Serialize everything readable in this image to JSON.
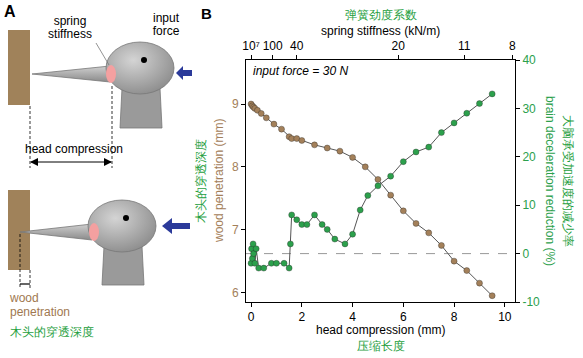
{
  "diagram": {
    "letter": "A",
    "labels": {
      "spring": "spring stiffness",
      "force": "input force",
      "compression": "head compression",
      "penetration": "wood penetration",
      "penetration_zh": "木头的穿透深度"
    }
  },
  "chart_data": {
    "panel": "B",
    "type": "line",
    "marker": "circle",
    "line_style": "solid",
    "xlabel": "head compression (mm)",
    "xlabel_zh": "压缩长度",
    "x2label": "spring stiffness (kN/m)",
    "x2label_zh": "弹簧劲度系数",
    "ylabel": "wood penetration (mm)",
    "ylabel_zh": "木头的穿透深度",
    "y2label": "brain deceleration reduction (%)",
    "y2label_zh": "大脑承受加速度的减少率",
    "annotations": [
      {
        "text": "input force = 30 N"
      }
    ],
    "xlim": [
      -0.2,
      10.4
    ],
    "xticks": [
      0,
      2,
      4,
      6,
      8,
      10
    ],
    "x2ticks": [
      {
        "value": 10000000,
        "label": "10⁷",
        "at": 0
      },
      {
        "value": 100,
        "at": 0.85
      },
      {
        "value": 40,
        "at": 1.8
      },
      {
        "value": 20,
        "at": 5.8
      },
      {
        "value": 11,
        "at": 8.4
      },
      {
        "value": 8,
        "at": 10.3
      }
    ],
    "ylim": [
      5.85,
      9.7
    ],
    "yticks": [
      6,
      7,
      8,
      9
    ],
    "y2lim": [
      -10,
      40
    ],
    "y2ticks": [
      -10,
      0,
      10,
      20,
      30,
      40
    ],
    "hlines": [
      {
        "axis": "y2",
        "value": 0,
        "line_style": "dash"
      }
    ],
    "grid": false,
    "series": [
      {
        "color": "#a3805a",
        "axis": "y",
        "x": [
          0,
          0.05,
          0.1,
          0.15,
          0.25,
          0.4,
          0.6,
          0.9,
          1.2,
          1.5,
          1.6,
          1.8,
          2.0,
          2.5,
          3.0,
          3.5,
          4.0,
          4.5,
          5.0,
          5.5,
          6.0,
          6.5,
          7.0,
          7.5,
          8.0,
          8.5,
          9.0,
          9.5
        ],
        "values": [
          9.0,
          8.97,
          8.95,
          8.93,
          8.9,
          8.85,
          8.78,
          8.68,
          8.6,
          8.48,
          8.45,
          8.45,
          8.42,
          8.35,
          8.3,
          8.25,
          8.15,
          8.0,
          7.8,
          7.55,
          7.3,
          7.1,
          6.95,
          6.75,
          6.5,
          6.35,
          6.15,
          5.95
        ]
      },
      {
        "color": "#2ca04c",
        "axis": "y2",
        "x": [
          0,
          0.02,
          0.05,
          0.08,
          0.1,
          0.15,
          0.2,
          0.3,
          0.5,
          0.8,
          1.0,
          1.3,
          1.5,
          1.55,
          1.6,
          1.8,
          2.0,
          2.2,
          2.5,
          2.8,
          3.0,
          3.3,
          3.7,
          4.0,
          4.3,
          4.6,
          5.0,
          5.5,
          6.0,
          6.5,
          7.0,
          7.5,
          8.0,
          8.5,
          9.0,
          9.5
        ],
        "values": [
          -2,
          1,
          -1,
          2,
          0,
          -2,
          1,
          -3,
          -3,
          -2,
          -2,
          -2,
          -3,
          2,
          8,
          7,
          6,
          6,
          8,
          6,
          5,
          3,
          2,
          4,
          9,
          12,
          14,
          16,
          19,
          21,
          22,
          25,
          27,
          29,
          31,
          33
        ]
      }
    ]
  }
}
